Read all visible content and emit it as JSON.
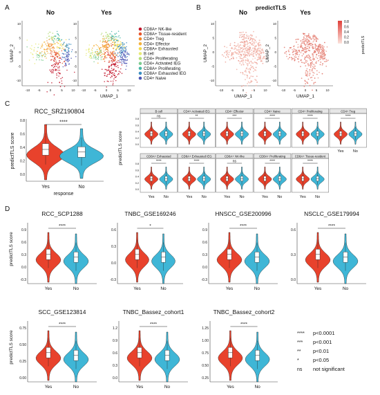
{
  "colors": {
    "yes": "#e8422c",
    "no": "#3fb6d6",
    "panel_border": "#666666",
    "strip_fill": "#e6e6e6"
  },
  "panel_letters": [
    "A",
    "B",
    "C",
    "D"
  ],
  "panelA": {
    "titles": [
      "No",
      "Yes"
    ],
    "xlabel": "UMAP_1",
    "ylabel": "UMAP_2",
    "legend": [
      {
        "label": "CD8A+ NK-like",
        "color": "#c2162b"
      },
      {
        "label": "CD8A+ Tissue-resident",
        "color": "#e8562a"
      },
      {
        "label": "CD4+ Treg",
        "color": "#f08a2c"
      },
      {
        "label": "CD4+ Effector",
        "color": "#f4b23a"
      },
      {
        "label": "CD8A+ Exhausted",
        "color": "#f3d94e"
      },
      {
        "label": "B cell",
        "color": "#e8ea74"
      },
      {
        "label": "CD4+ Proliferating",
        "color": "#b8dd7b"
      },
      {
        "label": "CD4+ Activated IEG",
        "color": "#7dcc8f"
      },
      {
        "label": "CD8A+ Proliferating",
        "color": "#49b7a6"
      },
      {
        "label": "CD8A+ Exhausted IEG",
        "color": "#3b8fc2"
      },
      {
        "label": "CD4+ Naive",
        "color": "#4c55b4"
      }
    ],
    "x_ticks": [
      "-10",
      "-5",
      "0",
      "5",
      "10"
    ],
    "y_ticks": [
      "10",
      "5",
      "0",
      "-5",
      "-10"
    ]
  },
  "panelB": {
    "title": "predictTLS",
    "subtitles": [
      "No",
      "Yes"
    ],
    "xlabel": "UMAP_1",
    "ylabel": "UMAP_2",
    "colorbar_ticks": [
      "0.8",
      "0.6",
      "0.4",
      "0.2",
      "0.0"
    ],
    "colorbar_label": "predictTLS",
    "x_ticks": [
      "-10",
      "-5",
      "0",
      "5",
      "10"
    ],
    "y_ticks": [
      "10",
      "5",
      "0",
      "-5",
      "-10"
    ]
  },
  "panelC": {
    "main": {
      "title": "RCC_SRZ190804",
      "ylabel": "predictTLS score",
      "xlabel": "response",
      "categories": [
        "Yes",
        "No"
      ],
      "sig": "****",
      "y_ticks": [
        "0.8",
        "0.6",
        "0.4",
        "0.2",
        "0.0"
      ]
    },
    "facet_ylabel": "predictTLS score",
    "facet_y_ticks": [
      "0.8",
      "0.6",
      "0.4",
      "0.2",
      "0.0"
    ],
    "facet_x_labels": [
      "Yes",
      "No"
    ],
    "facets_row1": [
      {
        "name": "B cell",
        "sig": "ns"
      },
      {
        "name": "CD4+ Activated IEG",
        "sig": "**"
      },
      {
        "name": "CD4+ Effector",
        "sig": "***"
      },
      {
        "name": "CD4+ Naive",
        "sig": "****"
      },
      {
        "name": "CD4+ Proliferating",
        "sig": "****"
      },
      {
        "name": "CD4+ Treg",
        "sig": "****"
      }
    ],
    "facets_row2": [
      {
        "name": "CD8A+ Exhausted",
        "sig": "****"
      },
      {
        "name": "CD8A+ Exhausted IEG",
        "sig": "****"
      },
      {
        "name": "CD8A+ NK-like",
        "sig": "ns"
      },
      {
        "name": "CD8A+ Proliferating",
        "sig": "****"
      },
      {
        "name": "CD8A+ Tissue-resident",
        "sig": "****"
      }
    ]
  },
  "panelD": {
    "ylabel": "predictTLS score",
    "categories": [
      "Yes",
      "No"
    ],
    "plots": [
      {
        "title": "RCC_SCP1288",
        "sig": "****",
        "y_ticks": [
          "0.9",
          "0.6",
          "0.3",
          "0.0",
          "-0.3"
        ]
      },
      {
        "title": "TNBC_GSE169246",
        "sig": "*",
        "y_ticks": [
          "0.6",
          "0.3",
          "0.0",
          "-0.3"
        ]
      },
      {
        "title": "HNSCC_GSE200996",
        "sig": "****",
        "y_ticks": [
          "0.9",
          "0.6",
          "0.3",
          "0.0",
          "-0.3"
        ]
      },
      {
        "title": "NSCLC_GSE179994",
        "sig": "****",
        "y_ticks": [
          "0.6",
          "0.3",
          "0.0"
        ]
      },
      {
        "title": "SCC_GSE123814",
        "sig": "****",
        "y_ticks": [
          "0.75",
          "0.50",
          "0.25",
          "0.00"
        ]
      },
      {
        "title": "TNBC_Bassez_cohort1",
        "sig": "****",
        "y_ticks": [
          "1.2",
          "0.9",
          "0.6",
          "0.3",
          "0.0"
        ]
      },
      {
        "title": "TNBC_Bassez_cohort2",
        "sig": "****",
        "y_ticks": [
          "1.25",
          "1.00",
          "0.75",
          "0.50",
          "0.25"
        ]
      }
    ],
    "sig_legend": [
      {
        "sym": "****",
        "text": "p<0.0001"
      },
      {
        "sym": "***",
        "text": "p<0.001"
      },
      {
        "sym": "**",
        "text": "p<0.01"
      },
      {
        "sym": "*",
        "text": "p<0.05"
      },
      {
        "sym": "ns",
        "text": "not significant"
      }
    ]
  }
}
